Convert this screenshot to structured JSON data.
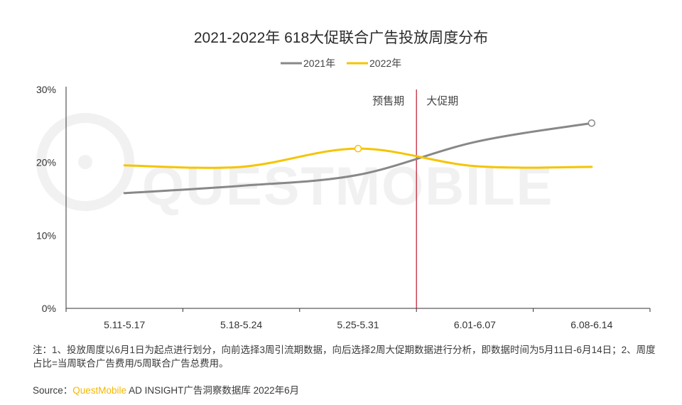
{
  "chart_data": {
    "type": "line",
    "title": "2021-2022年 618大促联合广告投放周度分布",
    "categories": [
      "5.11-5.17",
      "5.18-5.24",
      "5.25-5.31",
      "6.01-6.07",
      "6.08-6.14"
    ],
    "y_ticks": [
      "30%",
      "20%",
      "10%",
      "0%"
    ],
    "ylim": [
      0,
      30
    ],
    "series": [
      {
        "name": "2021年",
        "color": "#888888",
        "values": [
          15.8,
          16.8,
          18.3,
          22.8,
          25.4
        ]
      },
      {
        "name": "2022年",
        "color": "#f5c400",
        "values": [
          19.6,
          19.4,
          21.9,
          19.5,
          19.4
        ]
      }
    ],
    "divider": {
      "position": "between 5.25-5.31 and 6.01-6.07",
      "color": "#c0162c"
    },
    "annotations": {
      "before": "预售期",
      "after": "大促期"
    },
    "legend_position": "top-center",
    "grid": false
  },
  "watermark": "QUESTMOBILE",
  "footer": {
    "note": "注：1、投放周度以6月1日为起点进行划分，向前选择3周引流期数据，向后选择2周大促期数据进行分析，即数据时间为5月11日-6月14日；2、周度占比=当周联合广告费用/5周联合广告总费用。",
    "source_label": "Source：",
    "source_brand": "QuestMobile",
    "source_rest": " AD INSIGHT广告洞察数据库 2022年6月"
  }
}
